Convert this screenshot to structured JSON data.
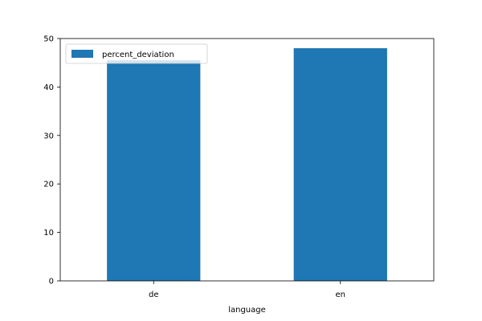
{
  "chart_data": {
    "type": "bar",
    "categories": [
      "de",
      "en"
    ],
    "series": [
      {
        "name": "percent_deviation",
        "values": [
          45.5,
          48.0
        ],
        "color": "#1f77b4"
      }
    ],
    "title": "",
    "xlabel": "language",
    "ylabel": "",
    "ylim": [
      0,
      50
    ],
    "yticks": [
      0,
      10,
      20,
      30,
      40,
      50
    ],
    "grid": false,
    "legend": {
      "placement": "upper-left",
      "entries": [
        "percent_deviation"
      ]
    }
  }
}
